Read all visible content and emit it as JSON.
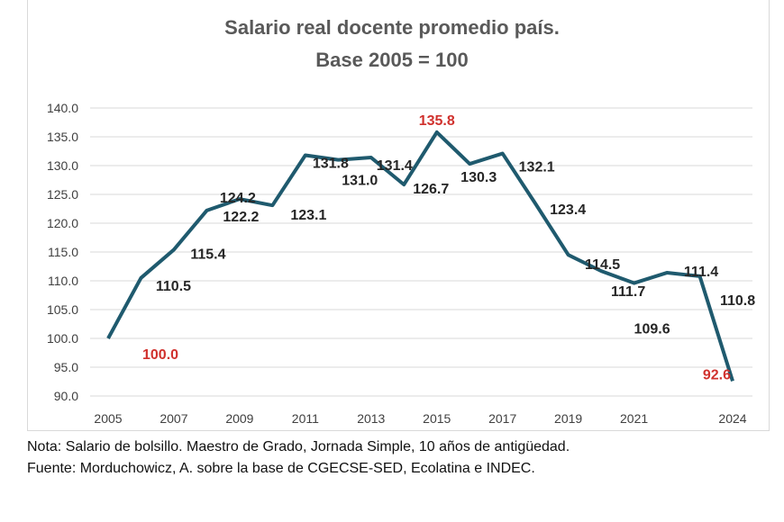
{
  "chart_data": {
    "type": "line",
    "title": "Salario real docente promedio país.",
    "subtitle": "Base 2005 = 100",
    "xlabel": "",
    "ylabel": "",
    "x": [
      2005,
      2006,
      2007,
      2008,
      2009,
      2010,
      2011,
      2012,
      2013,
      2014,
      2015,
      2016,
      2017,
      2018,
      2019,
      2020,
      2021,
      2022,
      2023,
      2024
    ],
    "x_tick_labels": [
      "2005",
      "2007",
      "2009",
      "2011",
      "2013",
      "2015",
      "2017",
      "2019",
      "2021",
      "2024"
    ],
    "y_tick_labels": [
      "140.0",
      "135.0",
      "130.0",
      "125.0",
      "120.0",
      "115.0",
      "110.0",
      "105.0",
      "100.0",
      "95.0",
      "90.0"
    ],
    "ylim": [
      90,
      140
    ],
    "grid": true,
    "series": [
      {
        "values": [
          100.0,
          110.5,
          115.4,
          122.2,
          124.2,
          123.1,
          131.8,
          131.0,
          131.4,
          126.7,
          135.8,
          130.3,
          132.1,
          123.4,
          114.5,
          111.7,
          109.6,
          111.4,
          110.8,
          92.6
        ],
        "labels": [
          "100.0",
          "110.5",
          "115.4",
          "122.2",
          "124.2",
          "123.1",
          "131.8",
          "131.0",
          "131.4",
          "126.7",
          "135.8",
          "130.3",
          "132.1",
          "123.4",
          "114.5",
          "111.7",
          "109.6",
          "111.4",
          "110.8",
          "92.6"
        ],
        "color": "#1f5a6e"
      }
    ],
    "highlight_color": "#d0312d",
    "highlighted_labels": [
      "100.0",
      "135.8",
      "92.6"
    ]
  },
  "notes": {
    "nota": "Nota: Salario de bolsillo. Maestro de Grado, Jornada Simple, 10 años de antigüedad.",
    "fuente": "Fuente: Morduchowicz, A. sobre la base de CGECSE-SED, Ecolatina e INDEC."
  }
}
